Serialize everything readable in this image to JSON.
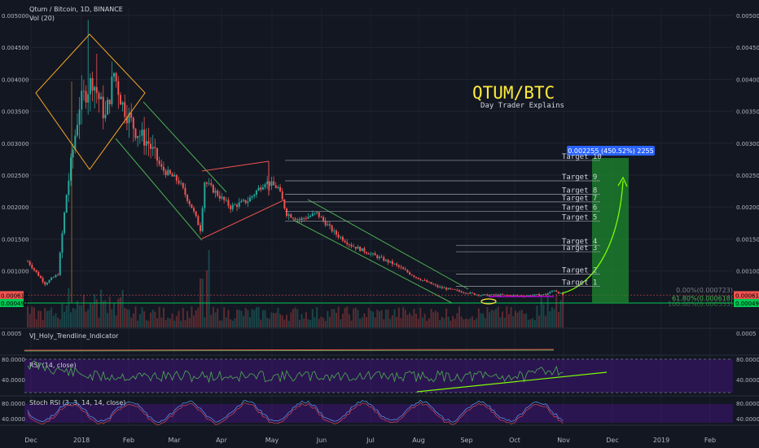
{
  "header": {
    "symbol": "Qtum / Bitcoin, 1D, BINANCE",
    "volume": "Vol (20)"
  },
  "overlay": {
    "title": "QTUM/BTC",
    "subtitle": "Day Trader Explains"
  },
  "price_axis": {
    "ticks": [
      0.005,
      0.0045,
      0.004,
      0.0035,
      0.003,
      0.0025,
      0.002,
      0.0015,
      0.001
    ],
    "labels": [
      "0.005000",
      "0.004500",
      "0.004000",
      "0.003500",
      "0.003000",
      "0.002500",
      "0.002000",
      "0.001500",
      "0.001000"
    ],
    "current_price": "0.000619",
    "current_price_color": "#ef5350",
    "support_price": "0.000497",
    "support_color": "#00c853"
  },
  "time_axis": {
    "labels": [
      "Dec",
      "2018",
      "Feb",
      "Mar",
      "Apr",
      "May",
      "Jun",
      "Jul",
      "Aug",
      "Sep",
      "Oct",
      "Nov",
      "Dec",
      "2019",
      "Feb"
    ]
  },
  "targets": [
    {
      "label": "Target 1",
      "price": 0.00076
    },
    {
      "label": "Target 2",
      "price": 0.00095
    },
    {
      "label": "Target 3",
      "price": 0.0013
    },
    {
      "label": "Target 4",
      "price": 0.0014
    },
    {
      "label": "Target 5",
      "price": 0.00178
    },
    {
      "label": "Target 6",
      "price": 0.00193
    },
    {
      "label": "Target 7",
      "price": 0.00208
    },
    {
      "label": "Target 8",
      "price": 0.0022
    },
    {
      "label": "Target 9",
      "price": 0.00241
    },
    {
      "label": "Target 10",
      "price": 0.00273
    }
  ],
  "fib": {
    "level0": "0.00%(0.000723)",
    "level618": "61.80%(0.000618)",
    "level100": "100.00%(0.000553)"
  },
  "projection": {
    "badge": "0.002255 (450.52%) 2255",
    "color": "#1e8a2e"
  },
  "indicators": {
    "trendline": {
      "name": "VJ_Holy_Trendline_Indicator",
      "ticks": [
        "0.0005",
        "0.0005"
      ]
    },
    "rsi": {
      "name": "RSI (14, close)",
      "ticks": [
        "80.0000",
        "40.0000",
        "80.0000",
        "40.0000"
      ]
    },
    "stoch": {
      "name": "Stoch RSI (3, 3, 14, 14, close)",
      "ticks": [
        "80.0000",
        "40.0000",
        "80.0000",
        "40.0000"
      ]
    }
  },
  "chart_data": {
    "type": "candlestick",
    "title": "Qtum / Bitcoin, 1D, BINANCE",
    "ylim": [
      0.00043,
      0.0051
    ],
    "x_labels": [
      "Dec",
      "2018",
      "Feb",
      "Mar",
      "Apr",
      "May",
      "Jun",
      "Jul",
      "Aug",
      "Sep",
      "Oct",
      "Nov",
      "Dec",
      "2019",
      "Feb"
    ],
    "close_path_by_month": [
      {
        "month": "Dec",
        "close": 0.00095
      },
      {
        "month": "2018",
        "close": 0.0038
      },
      {
        "month": "Feb",
        "close": 0.0034
      },
      {
        "month": "Mar",
        "close": 0.0023
      },
      {
        "month": "Apr",
        "close": 0.0021
      },
      {
        "month": "May",
        "close": 0.0023
      },
      {
        "month": "Jun",
        "close": 0.0019
      },
      {
        "month": "Jul",
        "close": 0.0013
      },
      {
        "month": "Aug",
        "close": 0.00075
      },
      {
        "month": "Sep",
        "close": 0.00062
      },
      {
        "month": "Oct",
        "close": 0.00062
      }
    ],
    "last_close": 0.000619,
    "support": 0.000497
  }
}
